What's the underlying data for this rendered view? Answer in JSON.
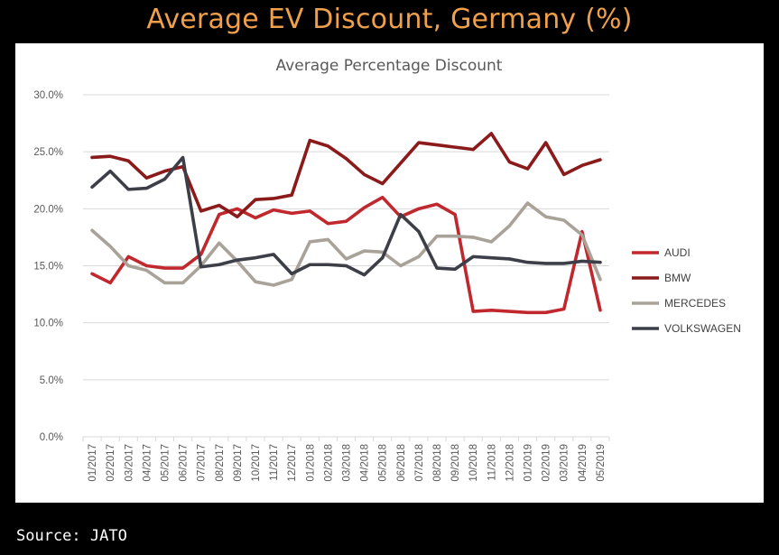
{
  "page": {
    "title": "Average EV Discount, Germany (%)",
    "source": "Source: JATO"
  },
  "chart_data": {
    "type": "line",
    "title": "Average Percentage Discount",
    "xlabel": "",
    "ylabel": "",
    "ylim": [
      0,
      30
    ],
    "y_ticks": [
      "0.0%",
      "5.0%",
      "10.0%",
      "15.0%",
      "20.0%",
      "25.0%",
      "30.0%"
    ],
    "grid": true,
    "legend_position": "right",
    "x": [
      "01/2017",
      "02/2017",
      "03/2017",
      "04/2017",
      "05/2017",
      "06/2017",
      "07/2017",
      "08/2017",
      "09/2017",
      "10/2017",
      "11/2017",
      "12/2017",
      "01/2018",
      "02/2018",
      "03/2018",
      "04/2018",
      "05/2018",
      "06/2018",
      "07/2018",
      "08/2018",
      "09/2018",
      "10/2018",
      "11/2018",
      "12/2018",
      "01/2019",
      "02/2019",
      "03/2019",
      "04/2019",
      "05/2019"
    ],
    "series": [
      {
        "name": "AUDI",
        "color": "#c0282d",
        "values": [
          14.3,
          13.5,
          15.8,
          15.0,
          14.8,
          14.8,
          16.0,
          19.5,
          20.0,
          19.2,
          19.9,
          19.6,
          19.8,
          18.7,
          18.9,
          20.1,
          21.0,
          19.3,
          20.0,
          20.4,
          19.5,
          11.0,
          11.1,
          11.0,
          10.9,
          10.9,
          11.2,
          18.0,
          11.1
        ]
      },
      {
        "name": "BMW",
        "color": "#8b1a1a",
        "values": [
          24.5,
          24.6,
          24.2,
          22.7,
          23.3,
          23.7,
          19.8,
          20.3,
          19.3,
          20.8,
          20.9,
          21.2,
          26.0,
          25.5,
          24.4,
          23.0,
          22.2,
          24.0,
          25.8,
          25.6,
          25.4,
          25.2,
          26.6,
          24.1,
          23.5,
          25.8,
          23.0,
          23.8,
          24.3
        ]
      },
      {
        "name": "MERCEDES",
        "color": "#a8a298",
        "values": [
          18.1,
          16.7,
          15.0,
          14.6,
          13.5,
          13.5,
          15.0,
          17.0,
          15.4,
          13.6,
          13.3,
          13.8,
          17.1,
          17.3,
          15.6,
          16.3,
          16.2,
          15.0,
          15.8,
          17.6,
          17.6,
          17.5,
          17.1,
          18.5,
          20.5,
          19.3,
          19.0,
          17.7,
          13.8
        ]
      },
      {
        "name": "VOLKSWAGEN",
        "color": "#3c3e48",
        "values": [
          21.9,
          23.3,
          21.7,
          21.8,
          22.6,
          24.5,
          14.9,
          15.1,
          15.5,
          15.7,
          16.0,
          14.3,
          15.1,
          15.1,
          15.0,
          14.2,
          15.7,
          19.5,
          18.0,
          14.8,
          14.7,
          15.8,
          15.7,
          15.6,
          15.3,
          15.2,
          15.2,
          15.4,
          15.3
        ]
      }
    ]
  }
}
